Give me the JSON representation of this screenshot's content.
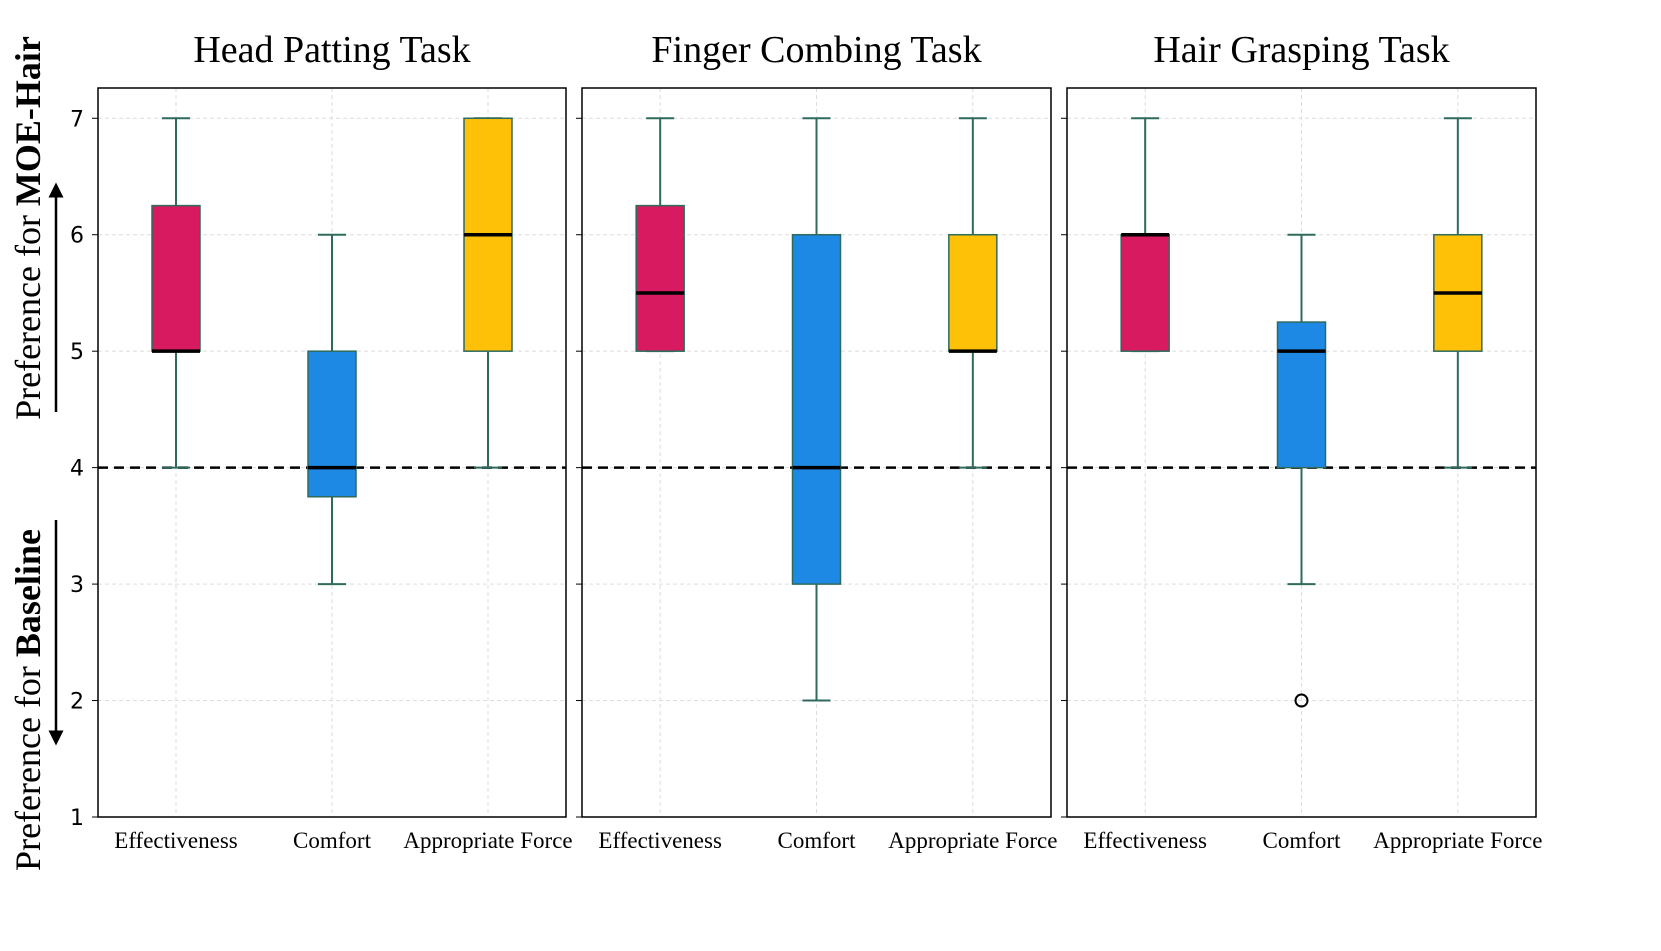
{
  "chart_data": [
    {
      "type": "box",
      "title": "Head Patting Task",
      "ylabel_upper": {
        "prefix": "Preference for",
        "emphasis": "MOE-Hair"
      },
      "ylabel_lower": {
        "prefix": "Preference for",
        "emphasis": "Baseline"
      },
      "categories": [
        "Effectiveness",
        "Comfort",
        "Appropriate Force"
      ],
      "colors": [
        "#d81b60",
        "#1e88e5",
        "#ffc107"
      ],
      "whisker_low": [
        4,
        3,
        4
      ],
      "q1": [
        5,
        3.75,
        5
      ],
      "median": [
        5,
        4,
        6
      ],
      "q3": [
        6.25,
        5,
        7
      ],
      "whisker_high": [
        7,
        6,
        7
      ],
      "outliers": [
        [],
        [],
        []
      ],
      "reference_line": 4,
      "ylim": [
        1,
        7.26
      ],
      "yticks": [
        1,
        2,
        3,
        4,
        5,
        6,
        7
      ],
      "show_ytick_labels": true,
      "grid": true
    },
    {
      "type": "box",
      "title": "Finger Combing Task",
      "categories": [
        "Effectiveness",
        "Comfort",
        "Appropriate Force"
      ],
      "colors": [
        "#d81b60",
        "#1e88e5",
        "#ffc107"
      ],
      "whisker_low": [
        5,
        2,
        4
      ],
      "q1": [
        5,
        3,
        5
      ],
      "median": [
        5.5,
        4,
        5
      ],
      "q3": [
        6.25,
        6,
        6
      ],
      "whisker_high": [
        7,
        7,
        7
      ],
      "outliers": [
        [],
        [],
        []
      ],
      "reference_line": 4,
      "ylim": [
        1,
        7.26
      ],
      "yticks": [
        1,
        2,
        3,
        4,
        5,
        6,
        7
      ],
      "show_ytick_labels": false,
      "grid": true
    },
    {
      "type": "box",
      "title": "Hair Grasping Task",
      "categories": [
        "Effectiveness",
        "Comfort",
        "Appropriate Force"
      ],
      "colors": [
        "#d81b60",
        "#1e88e5",
        "#ffc107"
      ],
      "whisker_low": [
        5,
        3,
        4
      ],
      "q1": [
        5,
        4,
        5
      ],
      "median": [
        6,
        5,
        5.5
      ],
      "q3": [
        6,
        5.25,
        6
      ],
      "whisker_high": [
        7,
        6,
        7
      ],
      "outliers": [
        [],
        [
          2
        ],
        []
      ],
      "reference_line": 4,
      "ylim": [
        1,
        7.26
      ],
      "yticks": [
        1,
        2,
        3,
        4,
        5,
        6,
        7
      ],
      "show_ytick_labels": false,
      "grid": true
    }
  ]
}
